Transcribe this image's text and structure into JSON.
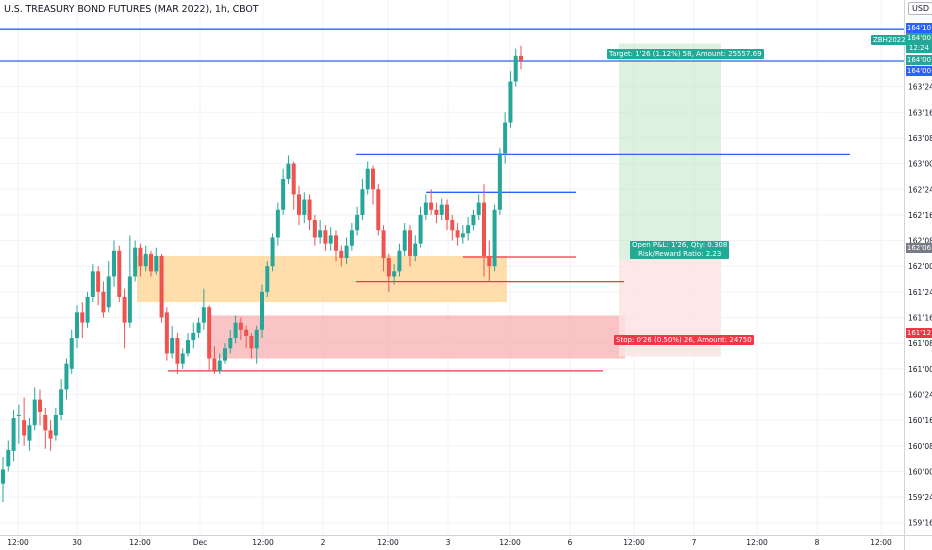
{
  "header": {
    "title": "U.S. TREASURY BOND FUTURES (MAR 2022), 1h, CBOT",
    "currency": "USD"
  },
  "colors": {
    "up": "#26a69a",
    "down": "#ef5350",
    "level_blue": "#2962ff",
    "level_red": "#f23645",
    "zone_orange": "#ffcc80",
    "zone_red": "#f7a5a5",
    "target_green": "#c8e6c9",
    "grid": "#f0f3fa"
  },
  "position": {
    "target_label": "Target: 1'26 (1.12%) 58, Amount: 25557.69",
    "stop_label": "Stop: 0'26 (0.50%) 26, Amount: 24750",
    "open_pnl_label": "Open P&L: 1'26, Qty: 0.308",
    "risk_reward_label": "Risk/Reward Ratio: 2.23",
    "symbol_tag": "ZBH2022"
  },
  "price_labels": {
    "top_blue": "164'10",
    "upper_green": "164'00",
    "countdown": "12:24",
    "mid_green": "164'00",
    "blue_lower": "164'00",
    "gray": "162'06",
    "red": "161'12"
  },
  "chart_data": {
    "type": "candlestick",
    "title": "U.S. TREASURY BOND FUTURES (MAR 2022), 1h, CBOT",
    "y_axis": {
      "ticks": [
        "159'16",
        "159'24",
        "160'00",
        "160'08",
        "160'16",
        "160'24",
        "161'00",
        "161'08",
        "161'16",
        "161'24",
        "162'00",
        "162'08",
        "162'16",
        "162'24",
        "163'00",
        "163'08",
        "163'16",
        "163'24",
        "164'00"
      ],
      "range": [
        159.4,
        164.45
      ]
    },
    "x_axis": {
      "ticks": [
        "12:00",
        "30",
        "12:00",
        "Dec",
        "12:00",
        "2",
        "12:00",
        "3",
        "12:00",
        "6",
        "12:00",
        "7",
        "12:00",
        "8",
        "12:00"
      ]
    },
    "candles": [
      [
        159.88,
        160.02,
        159.7,
        160.14
      ],
      [
        160.05,
        160.21,
        160.0,
        160.3
      ],
      [
        160.2,
        160.52,
        160.1,
        160.6
      ],
      [
        160.55,
        160.55,
        160.27,
        160.65
      ],
      [
        160.5,
        160.35,
        160.25,
        160.72
      ],
      [
        160.3,
        160.45,
        160.2,
        160.52
      ],
      [
        160.45,
        160.7,
        160.4,
        160.82
      ],
      [
        160.7,
        160.58,
        160.45,
        160.8
      ],
      [
        160.55,
        160.4,
        160.22,
        160.62
      ],
      [
        160.4,
        160.32,
        160.2,
        160.5
      ],
      [
        160.35,
        160.55,
        160.3,
        160.62
      ],
      [
        160.55,
        160.8,
        160.5,
        160.9
      ],
      [
        160.8,
        161.05,
        160.7,
        161.1
      ],
      [
        161.0,
        161.3,
        160.95,
        161.38
      ],
      [
        161.3,
        161.55,
        161.2,
        161.62
      ],
      [
        161.55,
        161.45,
        161.3,
        161.65
      ],
      [
        161.45,
        161.7,
        161.4,
        161.75
      ],
      [
        161.7,
        161.95,
        161.65,
        162.02
      ],
      [
        161.95,
        161.75,
        161.62,
        162.0
      ],
      [
        161.75,
        161.55,
        161.5,
        161.85
      ],
      [
        161.6,
        161.9,
        161.55,
        162.05
      ],
      [
        161.9,
        162.15,
        161.8,
        162.25
      ],
      [
        162.15,
        161.7,
        161.65,
        162.2
      ],
      [
        161.7,
        161.45,
        161.2,
        161.78
      ],
      [
        161.45,
        161.9,
        161.4,
        162.3
      ],
      [
        161.9,
        162.18,
        161.85,
        162.25
      ],
      [
        162.18,
        162.0,
        161.9,
        162.22
      ],
      [
        162.0,
        162.12,
        161.95,
        162.2
      ],
      [
        162.12,
        161.95,
        161.9,
        162.15
      ],
      [
        161.95,
        162.1,
        161.92,
        162.18
      ],
      [
        162.1,
        161.5,
        161.45,
        162.12
      ],
      [
        161.55,
        161.15,
        161.08,
        161.6
      ],
      [
        161.15,
        161.3,
        161.1,
        161.42
      ],
      [
        161.3,
        161.05,
        160.95,
        161.35
      ],
      [
        161.05,
        161.15,
        161.0,
        161.2
      ],
      [
        161.15,
        161.28,
        161.12,
        161.35
      ],
      [
        161.28,
        161.35,
        161.2,
        161.45
      ],
      [
        161.35,
        161.45,
        161.3,
        161.5
      ],
      [
        161.45,
        161.6,
        161.38,
        161.78
      ],
      [
        161.6,
        161.1,
        160.98,
        161.62
      ],
      [
        161.1,
        160.98,
        160.95,
        161.22
      ],
      [
        160.98,
        161.08,
        160.95,
        161.15
      ],
      [
        161.08,
        161.2,
        161.05,
        161.25
      ],
      [
        161.2,
        161.3,
        161.15,
        161.38
      ],
      [
        161.3,
        161.45,
        161.25,
        161.52
      ],
      [
        161.45,
        161.38,
        161.28,
        161.5
      ],
      [
        161.38,
        161.32,
        161.2,
        161.42
      ],
      [
        161.32,
        161.2,
        161.1,
        161.35
      ],
      [
        161.2,
        161.38,
        161.05,
        161.42
      ],
      [
        161.38,
        161.75,
        161.3,
        161.82
      ],
      [
        161.75,
        162.0,
        161.7,
        162.05
      ],
      [
        162.0,
        162.28,
        161.95,
        162.32
      ],
      [
        162.28,
        162.55,
        162.2,
        162.62
      ],
      [
        162.55,
        162.85,
        162.5,
        162.95
      ],
      [
        162.85,
        163.0,
        162.8,
        163.08
      ],
      [
        163.0,
        162.7,
        162.55,
        163.02
      ],
      [
        162.7,
        162.5,
        162.4,
        162.78
      ],
      [
        162.5,
        162.65,
        162.42,
        162.72
      ],
      [
        162.65,
        162.45,
        162.35,
        162.7
      ],
      [
        162.45,
        162.28,
        162.2,
        162.5
      ],
      [
        162.28,
        162.35,
        162.22,
        162.45
      ],
      [
        162.35,
        162.22,
        162.15,
        162.4
      ],
      [
        162.22,
        162.3,
        162.15,
        162.38
      ],
      [
        162.3,
        162.15,
        162.05,
        162.35
      ],
      [
        162.15,
        162.08,
        162.0,
        162.2
      ],
      [
        162.08,
        162.2,
        162.02,
        162.28
      ],
      [
        162.2,
        162.35,
        162.15,
        162.42
      ],
      [
        162.35,
        162.5,
        162.3,
        162.58
      ],
      [
        162.5,
        162.75,
        162.45,
        162.85
      ],
      [
        162.75,
        162.95,
        162.7,
        163.02
      ],
      [
        162.95,
        162.75,
        162.6,
        162.98
      ],
      [
        162.75,
        162.35,
        162.3,
        162.8
      ],
      [
        162.35,
        162.08,
        161.95,
        162.4
      ],
      [
        162.08,
        161.9,
        161.75,
        162.12
      ],
      [
        161.9,
        161.95,
        161.82,
        162.02
      ],
      [
        161.95,
        162.15,
        161.9,
        162.22
      ],
      [
        162.15,
        162.35,
        162.1,
        162.42
      ],
      [
        162.35,
        162.1,
        162.0,
        162.4
      ],
      [
        162.1,
        162.22,
        162.05,
        162.3
      ],
      [
        162.22,
        162.5,
        162.18,
        162.58
      ],
      [
        162.5,
        162.62,
        162.45,
        162.7
      ],
      [
        162.62,
        162.55,
        162.5,
        162.75
      ],
      [
        162.55,
        162.5,
        162.42,
        162.62
      ],
      [
        162.5,
        162.6,
        162.45,
        162.66
      ],
      [
        162.6,
        162.45,
        162.35,
        162.65
      ],
      [
        162.45,
        162.35,
        162.25,
        162.5
      ],
      [
        162.35,
        162.28,
        162.2,
        162.42
      ],
      [
        162.28,
        162.32,
        162.22,
        162.4
      ],
      [
        162.32,
        162.4,
        162.25,
        162.48
      ],
      [
        162.4,
        162.5,
        162.35,
        162.55
      ],
      [
        162.5,
        162.62,
        162.45,
        162.7
      ],
      [
        162.62,
        162.1,
        161.9,
        162.8
      ],
      [
        162.1,
        162.0,
        161.85,
        162.25
      ],
      [
        162.0,
        162.55,
        161.95,
        162.6
      ],
      [
        162.55,
        163.1,
        162.5,
        163.15
      ],
      [
        163.1,
        163.4,
        163.0,
        163.5
      ],
      [
        163.4,
        163.8,
        163.35,
        163.9
      ],
      [
        163.8,
        164.05,
        163.75,
        164.12
      ],
      [
        164.05,
        164.0,
        163.92,
        164.15
      ]
    ],
    "levels": [
      {
        "price": 164.31,
        "color": "blue",
        "label": "164'10"
      },
      {
        "price": 164.0,
        "color": "blue",
        "label": "164'00"
      },
      {
        "price": 163.09,
        "color": "blue"
      },
      {
        "price": 162.72,
        "color": "blue"
      },
      {
        "price": 162.09,
        "color": "red"
      },
      {
        "price": 161.85,
        "color": "red"
      },
      {
        "price": 160.98,
        "color": "red"
      }
    ],
    "zones": [
      {
        "type": "demand",
        "top": 162.1,
        "bottom": 161.65
      },
      {
        "type": "supply",
        "top": 161.52,
        "bottom": 161.1
      },
      {
        "type": "target",
        "top": 164.17,
        "bottom": 162.06
      },
      {
        "type": "stop",
        "top": 162.06,
        "bottom": 161.12
      }
    ]
  }
}
